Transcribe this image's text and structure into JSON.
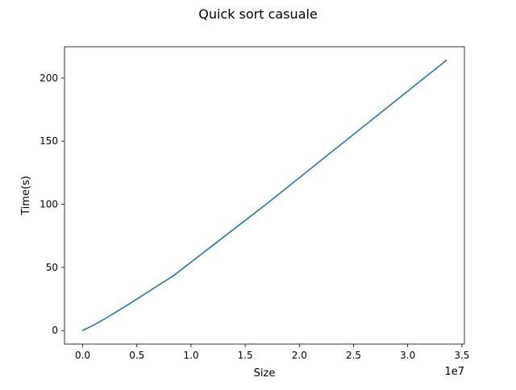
{
  "chart_data": {
    "type": "line",
    "title": "Quick sort casuale",
    "xlabel": "Size",
    "ylabel": "Time(s)",
    "x_offset_label": "1e7",
    "xlim": [
      -1677721.6,
      35232153.6
    ],
    "ylim": [
      -10.72,
      224.83
    ],
    "x_ticks": [
      0,
      5000000,
      10000000,
      15000000,
      20000000,
      25000000,
      30000000,
      35000000
    ],
    "x_tick_labels": [
      "0.0",
      "0.5",
      "1.0",
      "1.5",
      "2.0",
      "2.5",
      "3.0",
      "3.5"
    ],
    "y_ticks": [
      0,
      50,
      100,
      150,
      200
    ],
    "y_tick_labels": [
      "0",
      "50",
      "100",
      "150",
      "200"
    ],
    "grid": false,
    "series": [
      {
        "color": "#1f77b4",
        "x": [
          0,
          1048576,
          2097152,
          4194304,
          8388608,
          16777216,
          33554432
        ],
        "y": [
          0.1,
          4.5,
          9.5,
          20.5,
          43.5,
          99.0,
          214.0
        ]
      }
    ]
  }
}
